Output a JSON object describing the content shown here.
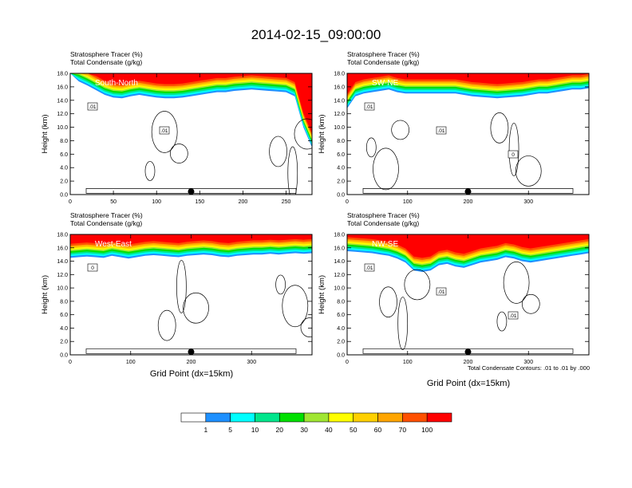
{
  "title": "2014-02-15_09:00:00",
  "header_line1": "Stratosphere Tracer   (%)",
  "header_line2": "Total Condensate   (g/kg)",
  "ylabel": "Height (km)",
  "xlabel": "Grid Point (dx=15km)",
  "contour_note": "Total Condensate Contours: .01 to .01 by .000",
  "colorbar": {
    "colors": [
      "#ffffff",
      "#1e90ff",
      "#00ffff",
      "#00e68c",
      "#00e000",
      "#a0e632",
      "#ffff00",
      "#ffd000",
      "#ffa500",
      "#ff5000",
      "#ff0000"
    ],
    "labels": [
      "1",
      "5",
      "10",
      "20",
      "30",
      "40",
      "50",
      "60",
      "70",
      "100"
    ]
  },
  "chart_data": [
    {
      "type": "heatmap",
      "panel": "South-North",
      "title": "South-North",
      "xlim": [
        0,
        280
      ],
      "xticks": [
        0,
        50,
        100,
        150,
        200,
        250
      ],
      "ylim": [
        0,
        18
      ],
      "yticks": [
        "0.0",
        "2.0",
        "4.0",
        "6.0",
        "8.0",
        "10.0",
        "12.0",
        "14.0",
        "16.0",
        "18.0"
      ],
      "contour_labels": [
        ".01",
        ".01"
      ],
      "marker_x": 140,
      "tracer_top_km": [
        18,
        16.8,
        16.2,
        15.5,
        14.8,
        14.4,
        14.3,
        14.6,
        14.8,
        14.6,
        14.4,
        14.3,
        14.3,
        14.4,
        14.6,
        14.8,
        15.0,
        15.2,
        15.2,
        15.4,
        15.5,
        15.6,
        15.5,
        15.4,
        15.3,
        15.2,
        14.6,
        10.0,
        7.0
      ]
    },
    {
      "type": "heatmap",
      "panel": "SW-NE",
      "title": "SW-NE",
      "xlim": [
        0,
        400
      ],
      "xticks": [
        0,
        100,
        200,
        300
      ],
      "ylim": [
        0,
        18
      ],
      "yticks": [
        "0.0",
        "2.0",
        "4.0",
        "6.0",
        "8.0",
        "10.0",
        "12.0",
        "14.0",
        "16.0",
        "18.0"
      ],
      "contour_labels": [
        ".01",
        ".01",
        "0"
      ],
      "marker_x": 200,
      "tracer_top_km": [
        12.8,
        14.6,
        15.0,
        15.2,
        15.4,
        15.6,
        15.2,
        15.0,
        15.0,
        15.0,
        15.0,
        15.0,
        15.0,
        15.0,
        14.8,
        14.6,
        14.5,
        14.4,
        14.3,
        14.4,
        14.5,
        14.6,
        14.8,
        15.0,
        15.0,
        15.2,
        15.4,
        15.6,
        15.6,
        15.8
      ]
    },
    {
      "type": "heatmap",
      "panel": "West-East",
      "title": "West-East",
      "xlim": [
        0,
        400
      ],
      "xticks": [
        0,
        100,
        200,
        300
      ],
      "ylim": [
        0,
        18
      ],
      "yticks": [
        "0.0",
        "2.0",
        "4.0",
        "6.0",
        "8.0",
        "10.0",
        "12.0",
        "14.0",
        "16.0",
        "18.0"
      ],
      "contour_labels": [
        "0"
      ],
      "marker_x": 200,
      "tracer_top_km": [
        14.5,
        14.6,
        14.7,
        14.6,
        14.5,
        14.8,
        14.6,
        14.4,
        14.6,
        14.8,
        14.9,
        14.8,
        14.7,
        14.6,
        14.8,
        14.9,
        15.0,
        14.9,
        14.7,
        14.6,
        14.8,
        14.9,
        15.0,
        15.0,
        15.1,
        15.0,
        15.1,
        15.2,
        15.1,
        15.2
      ]
    },
    {
      "type": "heatmap",
      "panel": "NW-SE",
      "title": "NW-SE",
      "xlim": [
        0,
        400
      ],
      "xticks": [
        0,
        100,
        200,
        300
      ],
      "ylim": [
        0,
        18
      ],
      "yticks": [
        "0.0",
        "2.0",
        "4.0",
        "6.0",
        "8.0",
        "10.0",
        "12.0",
        "14.0",
        "16.0",
        "18.0"
      ],
      "contour_labels": [
        ".01",
        ".01",
        ".01"
      ],
      "marker_x": 200,
      "tracer_top_km": [
        15.5,
        15.4,
        15.3,
        15.2,
        15.0,
        14.8,
        14.4,
        13.8,
        12.6,
        12.4,
        12.6,
        13.4,
        13.6,
        13.2,
        13.0,
        13.4,
        13.8,
        14.0,
        14.2,
        14.6,
        14.4,
        14.0,
        13.8,
        14.0,
        14.2,
        14.4,
        14.6,
        14.8,
        15.0,
        15.2
      ]
    }
  ]
}
